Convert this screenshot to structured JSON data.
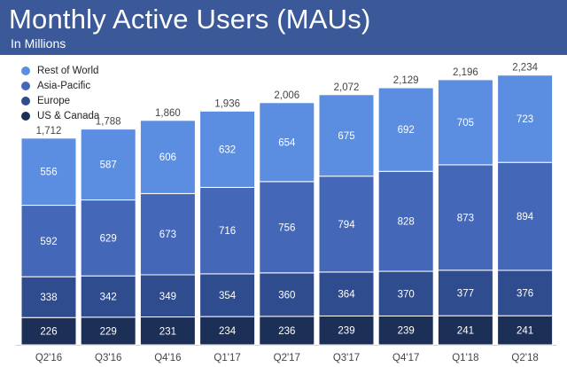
{
  "header": {
    "title": "Monthly Active Users (MAUs)",
    "subtitle": "In Millions"
  },
  "colors": {
    "header_bg": "#3b5998",
    "rest_of_world": "#5b8de0",
    "asia_pacific": "#4467b8",
    "europe": "#2f4c8e",
    "us_canada": "#1c2f57"
  },
  "chart_data": {
    "type": "bar",
    "stacked": true,
    "title": "Monthly Active Users (MAUs)",
    "subtitle": "In Millions",
    "xlabel": "",
    "ylabel": "",
    "categories": [
      "Q2'16",
      "Q3'16",
      "Q4'16",
      "Q1'17",
      "Q2'17",
      "Q3'17",
      "Q4'17",
      "Q1'18",
      "Q2'18"
    ],
    "series": [
      {
        "name": "US & Canada",
        "color": "#1c2f57",
        "values": [
          226,
          229,
          231,
          234,
          236,
          239,
          239,
          241,
          241
        ]
      },
      {
        "name": "Europe",
        "color": "#2f4c8e",
        "values": [
          338,
          342,
          349,
          354,
          360,
          364,
          370,
          377,
          376
        ]
      },
      {
        "name": "Asia-Pacific",
        "color": "#4467b8",
        "values": [
          592,
          629,
          673,
          716,
          756,
          794,
          828,
          873,
          894
        ]
      },
      {
        "name": "Rest of World",
        "color": "#5b8de0",
        "values": [
          556,
          587,
          606,
          632,
          654,
          675,
          692,
          705,
          723
        ]
      }
    ],
    "totals": [
      "1,712",
      "1,788",
      "1,860",
      "1,936",
      "2,006",
      "2,072",
      "2,129",
      "2,196",
      "2,234"
    ],
    "legend": [
      "Rest of World",
      "Asia-Pacific",
      "Europe",
      "US & Canada"
    ],
    "ylim": [
      0,
      2234
    ],
    "grid": false,
    "legend_position": "top-left"
  }
}
